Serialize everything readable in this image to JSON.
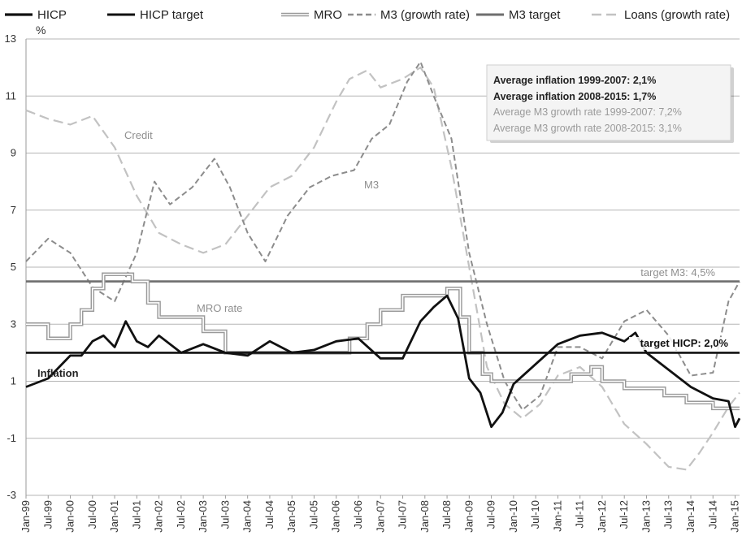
{
  "chart_data": {
    "type": "line",
    "ylabel": "%",
    "ylim": [
      -3,
      13
    ],
    "yticks": [
      "-3",
      "-1",
      "1",
      "3",
      "5",
      "7",
      "9",
      "11",
      "13"
    ],
    "grid": true,
    "legend_position": "top",
    "x_tick_labels": [
      "Jan-99",
      "Jul-99",
      "Jan-00",
      "Jul-00",
      "Jan-01",
      "Jul-01",
      "Jan-02",
      "Jul-02",
      "Jan-03",
      "Jul-03",
      "Jan-04",
      "Jul-04",
      "Jan-05",
      "Jul-05",
      "Jan-06",
      "Jul-06",
      "Jan-07",
      "Jul-07",
      "Jan-08",
      "Jul-08",
      "Jan-09",
      "Jul-09",
      "Jan-10",
      "Jul-10",
      "Jan-11",
      "Jul-11",
      "Jan-12",
      "Jul-12",
      "Jan-13",
      "Jul-13",
      "Jan-14",
      "Jul-14",
      "Jan-15"
    ],
    "series": [
      {
        "name": "HICP",
        "style": "solid-black",
        "color": "#111111",
        "x": [
          1999.0,
          1999.5,
          2000.0,
          2000.25,
          2000.5,
          2000.75,
          2001.0,
          2001.25,
          2001.5,
          2001.75,
          2002.0,
          2002.5,
          2003.0,
          2003.5,
          2004.0,
          2004.5,
          2005.0,
          2005.5,
          2006.0,
          2006.5,
          2007.0,
          2007.5,
          2007.9,
          2008.2,
          2008.5,
          2008.75,
          2009.0,
          2009.25,
          2009.5,
          2009.75,
          2010.0,
          2010.5,
          2011.0,
          2011.5,
          2012.0,
          2012.5,
          2012.75,
          2013.0,
          2013.5,
          2014.0,
          2014.5,
          2014.85,
          2015.0,
          2015.1
        ],
        "y": [
          0.8,
          1.1,
          1.9,
          1.9,
          2.4,
          2.6,
          2.2,
          3.1,
          2.4,
          2.2,
          2.6,
          2.0,
          2.3,
          2.0,
          1.9,
          2.4,
          2.0,
          2.1,
          2.4,
          2.5,
          1.8,
          1.8,
          3.1,
          3.6,
          4.0,
          3.2,
          1.1,
          0.6,
          -0.6,
          -0.1,
          0.9,
          1.6,
          2.3,
          2.6,
          2.7,
          2.4,
          2.7,
          2.0,
          1.4,
          0.8,
          0.4,
          0.3,
          -0.6,
          -0.3
        ]
      },
      {
        "name": "HICP target",
        "style": "solid-black-flat",
        "color": "#111111",
        "x": [
          1999.0,
          2015.1
        ],
        "y": [
          2.0,
          2.0
        ]
      },
      {
        "name": "MRO",
        "style": "double-gray-step",
        "color": "#9e9e9e",
        "x": [
          1999.0,
          1999.5,
          2000.0,
          2000.25,
          2000.5,
          2000.75,
          2001.4,
          2001.75,
          2002.0,
          2003.0,
          2003.5,
          2005.9,
          2006.3,
          2006.7,
          2007.0,
          2007.5,
          2008.5,
          2008.8,
          2009.0,
          2009.3,
          2009.5,
          2011.3,
          2011.75,
          2012.0,
          2012.5,
          2013.4,
          2013.9,
          2014.5,
          2015.1
        ],
        "y": [
          3.0,
          2.5,
          3.0,
          3.5,
          4.25,
          4.75,
          4.5,
          3.75,
          3.25,
          2.75,
          2.0,
          2.0,
          2.5,
          3.0,
          3.5,
          4.0,
          4.25,
          3.25,
          2.0,
          1.25,
          1.0,
          1.25,
          1.5,
          1.0,
          0.75,
          0.5,
          0.25,
          0.05,
          0.05
        ]
      },
      {
        "name": "M3 (growth rate)",
        "style": "dashed-gray",
        "color": "#8a8a8a",
        "x": [
          1999.0,
          1999.5,
          2000.0,
          2000.5,
          2001.0,
          2001.5,
          2001.9,
          2002.25,
          2002.75,
          2003.25,
          2003.6,
          2004.0,
          2004.4,
          2004.9,
          2005.4,
          2005.9,
          2006.4,
          2006.8,
          2007.2,
          2007.6,
          2007.9,
          2008.2,
          2008.6,
          2009.0,
          2009.4,
          2009.8,
          2010.2,
          2010.6,
          2011.0,
          2011.5,
          2012.0,
          2012.5,
          2013.0,
          2013.5,
          2014.0,
          2014.5,
          2014.85,
          2015.1
        ],
        "y": [
          5.2,
          6.0,
          5.5,
          4.3,
          3.8,
          5.5,
          8.0,
          7.2,
          7.8,
          8.8,
          7.8,
          6.2,
          5.2,
          6.8,
          7.8,
          8.2,
          8.4,
          9.5,
          10.0,
          11.5,
          12.2,
          11.0,
          9.5,
          5.5,
          3.0,
          1.0,
          0.0,
          0.5,
          2.2,
          2.2,
          1.8,
          3.1,
          3.5,
          2.6,
          1.2,
          1.3,
          3.8,
          4.5
        ]
      },
      {
        "name": "M3 target",
        "style": "solid-gray-flat",
        "color": "#707070",
        "x": [
          1999.0,
          2015.1
        ],
        "y": [
          4.5,
          4.5
        ]
      },
      {
        "name": "Loans (growth rate)",
        "style": "long-dashed-light-gray",
        "color": "#bfbfbf",
        "x": [
          1999.0,
          1999.5,
          2000.0,
          2000.5,
          2001.0,
          2001.5,
          2002.0,
          2002.5,
          2003.0,
          2003.5,
          2004.0,
          2004.5,
          2005.0,
          2005.5,
          2006.0,
          2006.3,
          2006.7,
          2007.0,
          2007.5,
          2007.9,
          2008.2,
          2008.6,
          2009.0,
          2009.4,
          2009.8,
          2010.2,
          2010.6,
          2011.0,
          2011.5,
          2012.0,
          2012.5,
          2013.0,
          2013.5,
          2013.9,
          2014.2,
          2014.5,
          2014.85,
          2015.1
        ],
        "y": [
          10.5,
          10.2,
          10.0,
          10.3,
          9.2,
          7.5,
          6.2,
          5.8,
          5.5,
          5.8,
          6.8,
          7.8,
          8.2,
          9.2,
          10.8,
          11.6,
          11.9,
          11.3,
          11.6,
          12.0,
          11.3,
          8.5,
          5.0,
          1.5,
          0.2,
          -0.3,
          0.2,
          1.2,
          1.5,
          0.8,
          -0.5,
          -1.2,
          -2.0,
          -2.1,
          -1.5,
          -0.8,
          0.1,
          0.6
        ]
      }
    ],
    "annotations": [
      {
        "text": "Credit",
        "color": "#8f8f8f"
      },
      {
        "text": "M3",
        "color": "#8f8f8f"
      },
      {
        "text": "MRO rate",
        "color": "#8f8f8f"
      },
      {
        "text": "Inflation",
        "color": "#222222"
      },
      {
        "text": "target M3: 4,5%",
        "color": "#8f8f8f"
      },
      {
        "text": "target HICP: 2,0%",
        "color": "#111111"
      }
    ],
    "info_box": [
      {
        "text": "Average inflation 1999-2007: 2,1%",
        "bold": true,
        "color": "#222222"
      },
      {
        "text": "Average inflation 2008-2015: 1,7%",
        "bold": true,
        "color": "#222222"
      },
      {
        "text": "Average M3 growth rate 1999-2007: 7,2%",
        "bold": false,
        "color": "#9a9a9a"
      },
      {
        "text": "Average M3 growth rate 2008-2015: 3,1%",
        "bold": false,
        "color": "#9a9a9a"
      }
    ]
  }
}
